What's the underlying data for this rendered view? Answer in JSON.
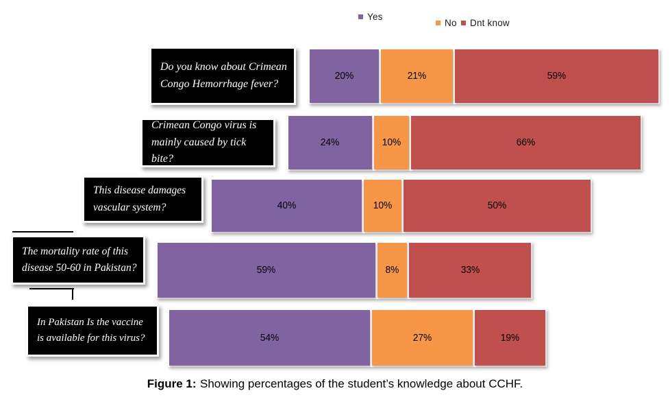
{
  "chart_data": {
    "type": "bar",
    "orientation": "horizontal",
    "stacked": true,
    "unit": "%",
    "grid": false,
    "legend_position": "top",
    "categories": [
      "Do you know about Crimean Congo Hemorrhage fever?",
      "Crimean Congo virus is mainly caused by tick bite?",
      "This disease damages vascular system?",
      "The mortality rate of this disease 50-60 in Pakistan?",
      "In Pakistan Is the vaccine is available for this virus?"
    ],
    "series": [
      {
        "name": "Yes",
        "color": "#8064A2",
        "values": [
          20,
          24,
          40,
          59,
          54
        ]
      },
      {
        "name": "No",
        "color": "#F79646",
        "values": [
          21,
          10,
          10,
          8,
          27
        ]
      },
      {
        "name": "Dnt know",
        "color": "#C0504D",
        "values": [
          59,
          66,
          50,
          33,
          19
        ]
      }
    ],
    "value_labels": [
      [
        "20%",
        "21%",
        "59%"
      ],
      [
        "24%",
        "10%",
        "66%"
      ],
      [
        "40%",
        "10%",
        "50%"
      ],
      [
        "59%",
        "8%",
        "33%"
      ],
      [
        "54%",
        "27%",
        "19%"
      ]
    ]
  },
  "caption": {
    "prefix": "Figure 1:",
    "text": "Showing percentages of the student’s knowledge about CCHF."
  }
}
